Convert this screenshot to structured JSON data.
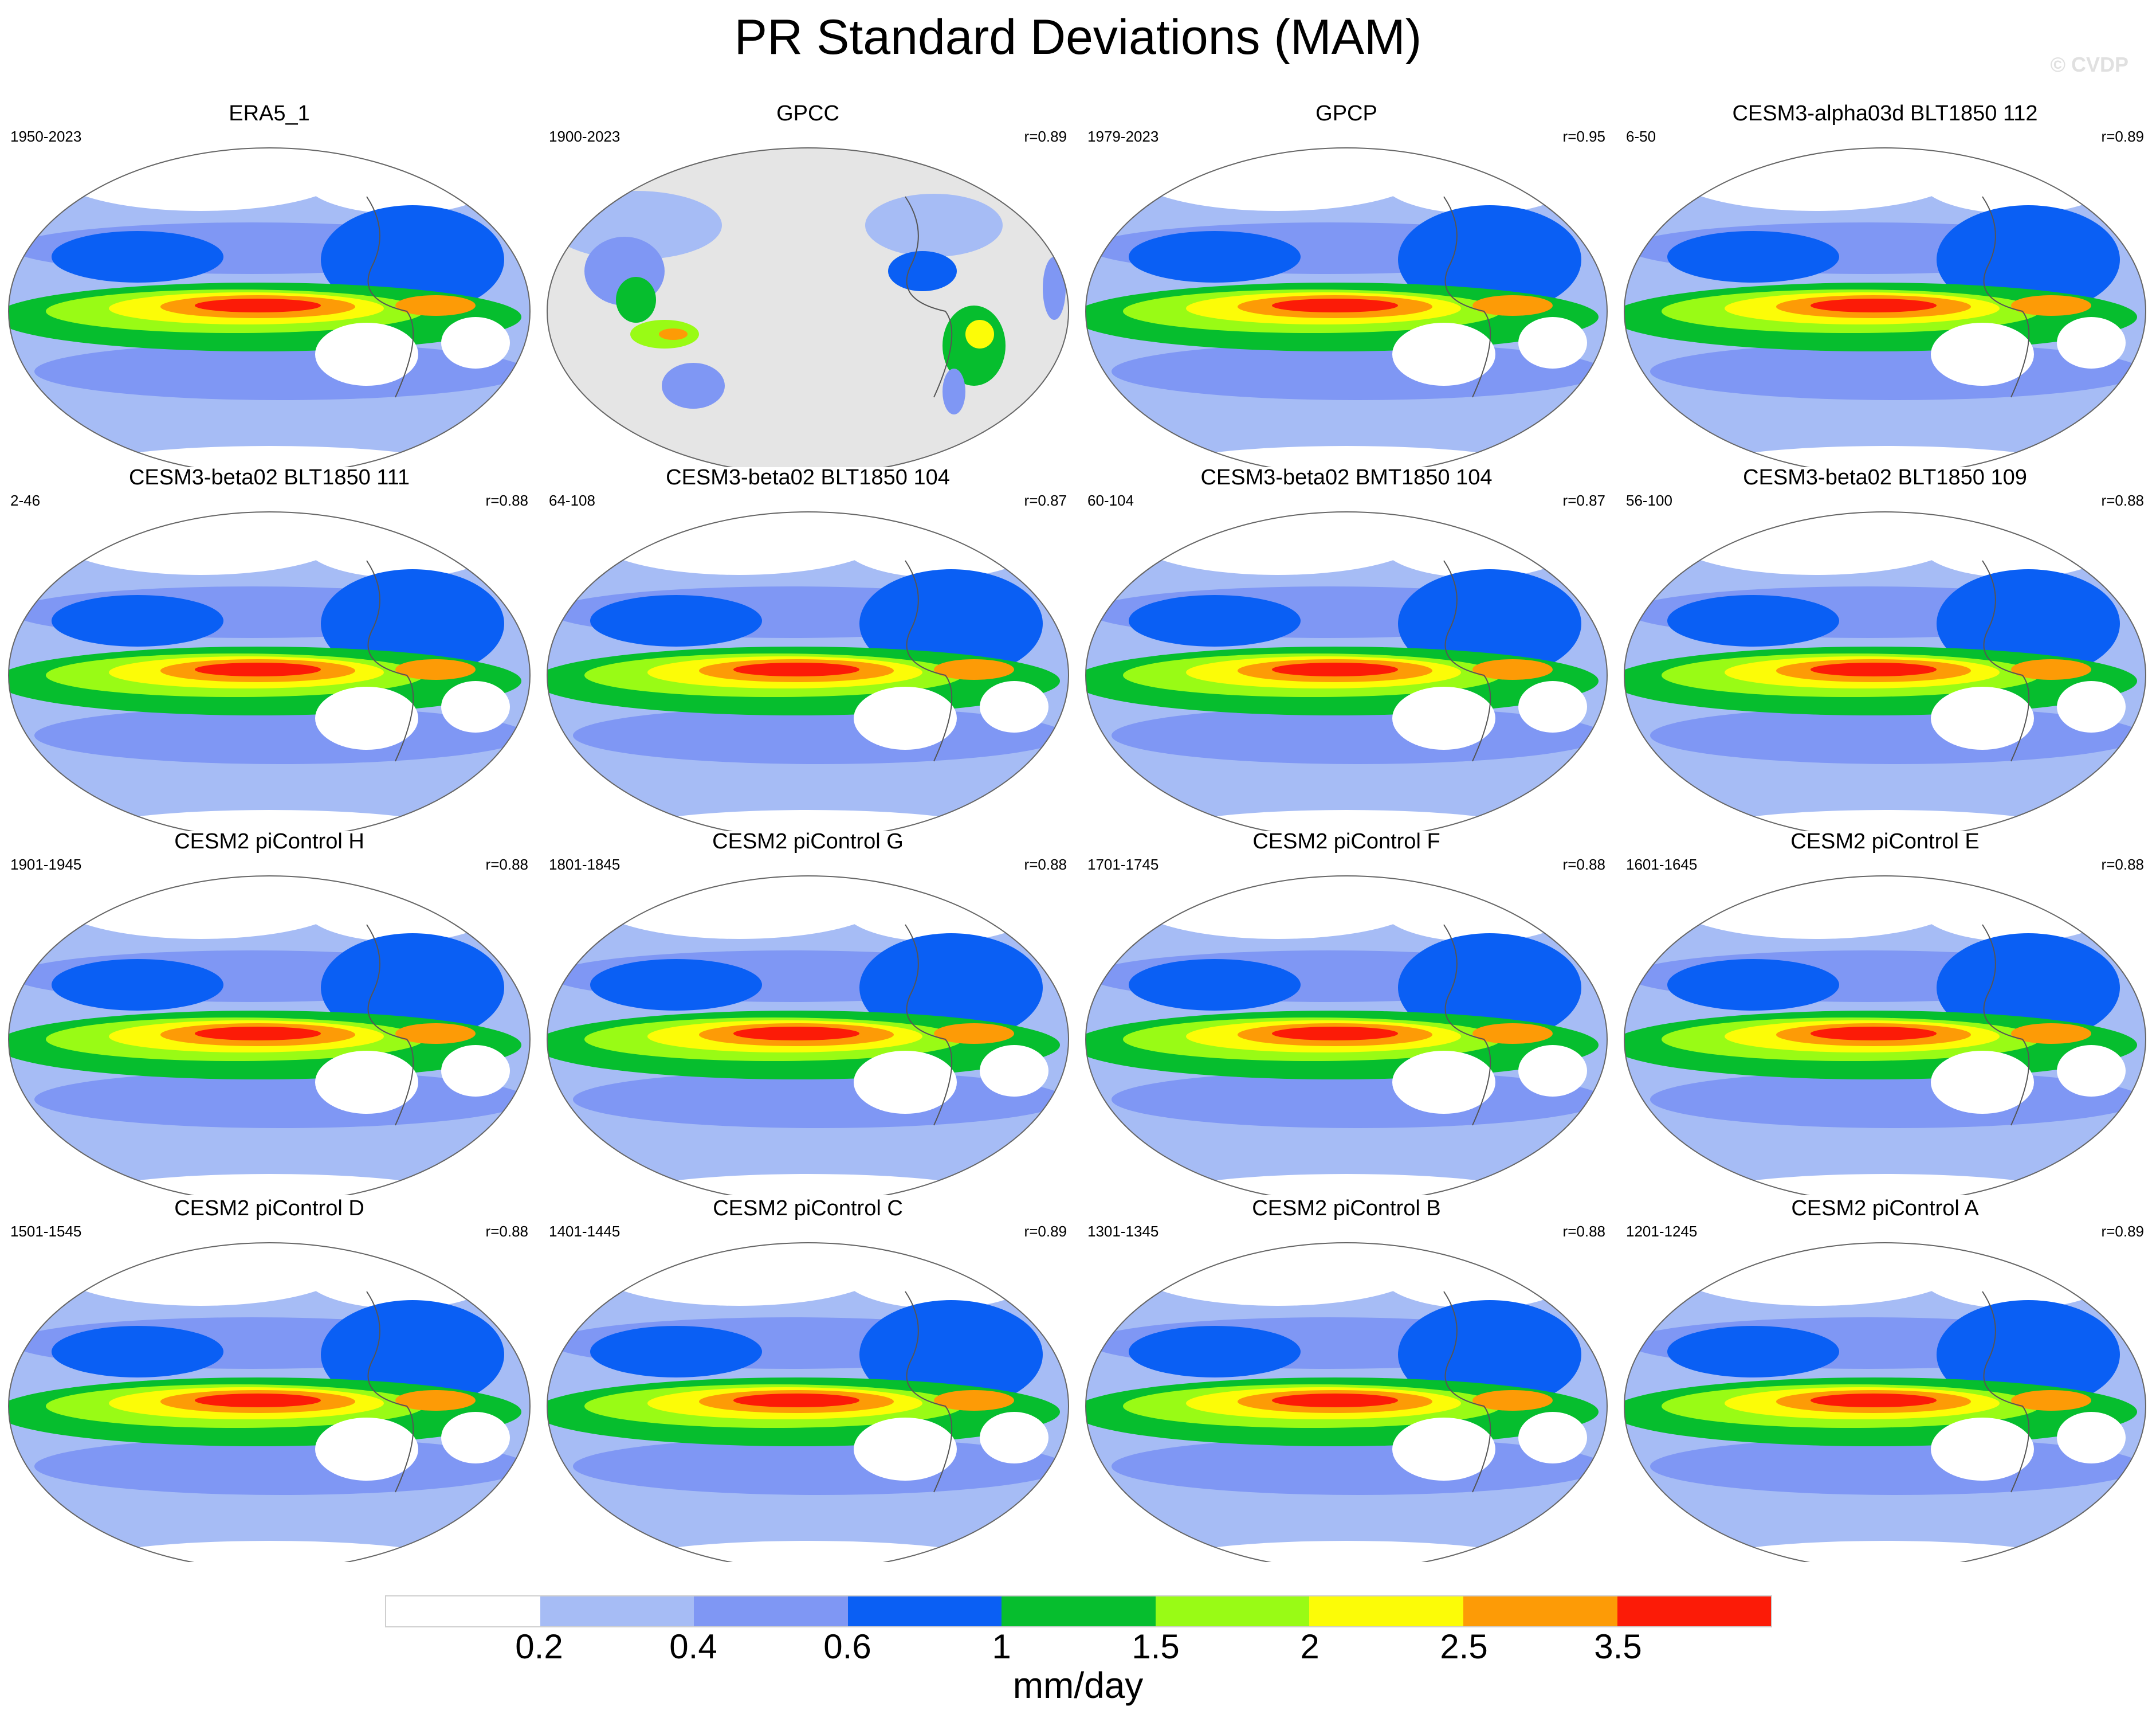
{
  "title": "PR Standard Deviations (MAM)",
  "watermark": "© CVDP",
  "panels": [
    {
      "name": "ERA5_1",
      "years": "1950-2023",
      "r": "",
      "style": "model"
    },
    {
      "name": "GPCC",
      "years": "1900-2023",
      "r": "r=0.89",
      "style": "land"
    },
    {
      "name": "GPCP",
      "years": "1979-2023",
      "r": "r=0.95",
      "style": "model"
    },
    {
      "name": "CESM3-alpha03d BLT1850 112",
      "years": "6-50",
      "r": "r=0.89",
      "style": "model"
    },
    {
      "name": "CESM3-beta02 BLT1850 111",
      "years": "2-46",
      "r": "r=0.88",
      "style": "model"
    },
    {
      "name": "CESM3-beta02 BLT1850 104",
      "years": "64-108",
      "r": "r=0.87",
      "style": "model"
    },
    {
      "name": "CESM3-beta02 BMT1850 104",
      "years": "60-104",
      "r": "r=0.87",
      "style": "model"
    },
    {
      "name": "CESM3-beta02 BLT1850 109",
      "years": "56-100",
      "r": "r=0.88",
      "style": "model"
    },
    {
      "name": "CESM2 piControl H",
      "years": "1901-1945",
      "r": "r=0.88",
      "style": "model"
    },
    {
      "name": "CESM2 piControl G",
      "years": "1801-1845",
      "r": "r=0.88",
      "style": "model"
    },
    {
      "name": "CESM2 piControl F",
      "years": "1701-1745",
      "r": "r=0.88",
      "style": "model"
    },
    {
      "name": "CESM2 piControl E",
      "years": "1601-1645",
      "r": "r=0.88",
      "style": "model"
    },
    {
      "name": "CESM2 piControl D",
      "years": "1501-1545",
      "r": "r=0.88",
      "style": "model"
    },
    {
      "name": "CESM2 piControl C",
      "years": "1401-1445",
      "r": "r=0.89",
      "style": "model"
    },
    {
      "name": "CESM2 piControl B",
      "years": "1301-1345",
      "r": "r=0.88",
      "style": "model"
    },
    {
      "name": "CESM2 piControl A",
      "years": "1201-1245",
      "r": "r=0.89",
      "style": "model"
    }
  ],
  "colorbar": {
    "unit": "mm/day",
    "ticks": [
      "0.2",
      "0.4",
      "0.6",
      "1",
      "1.5",
      "2",
      "2.5",
      "3.5"
    ],
    "colors": [
      "#ffffff",
      "#a6bcf5",
      "#7f97f4",
      "#0a5ff4",
      "#06be2e",
      "#99fb15",
      "#fcfc07",
      "#fd9b06",
      "#fc1b07"
    ],
    "land_mask_color": "#e5e5e5"
  }
}
